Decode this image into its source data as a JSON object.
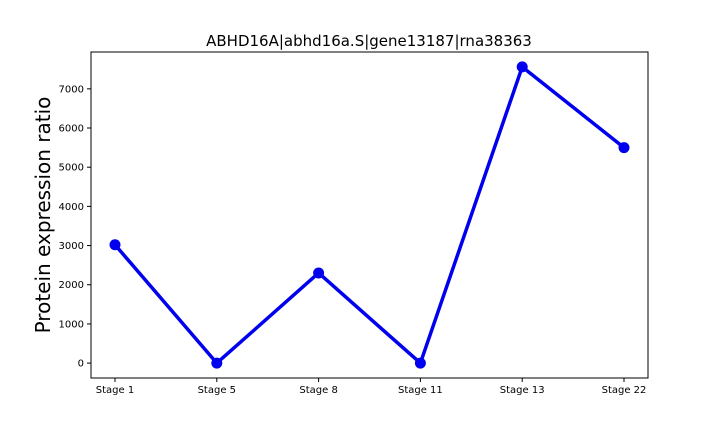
{
  "chart_data": {
    "type": "line",
    "title": "ABHD16A|abhd16a.S|gene13187|rna38363",
    "xlabel": "",
    "ylabel": "Protein expression ratio",
    "categories": [
      "Stage 1",
      "Stage 5",
      "Stage 8",
      "Stage 11",
      "Stage 13",
      "Stage 22"
    ],
    "series": [
      {
        "values": [
          3020,
          0,
          2300,
          0,
          7560,
          5500
        ],
        "color": "#0000ee"
      }
    ],
    "ylim": [
      -380,
      7940
    ],
    "yticks": [
      0,
      1000,
      2000,
      3000,
      4000,
      5000,
      6000,
      7000
    ],
    "grid": false
  }
}
